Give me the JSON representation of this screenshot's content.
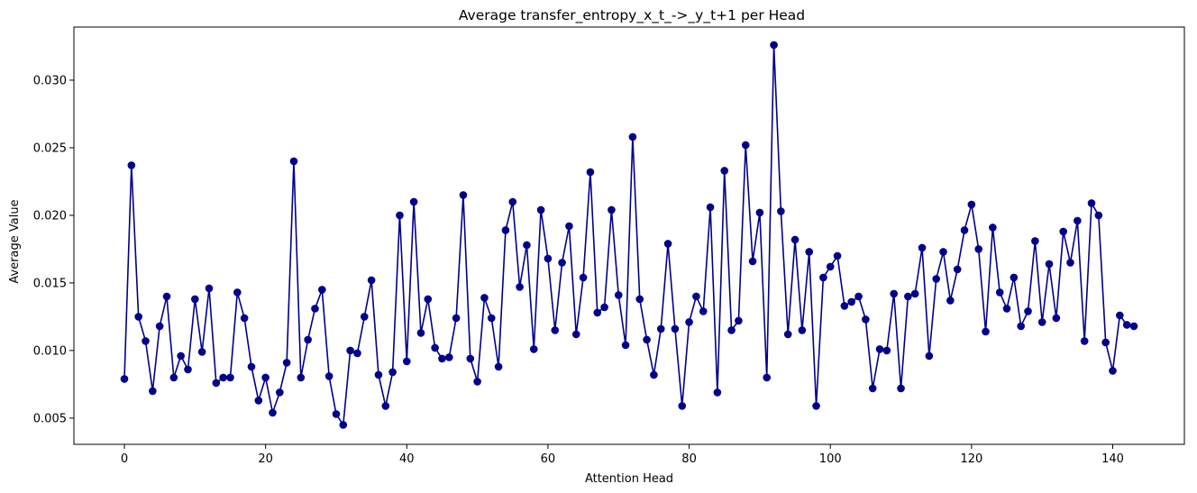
{
  "chart_data": {
    "type": "line",
    "title": "Average transfer_entropy_x_t_->_y_t+1 per Head",
    "xlabel": "Attention Head",
    "ylabel": "Average Value",
    "xlim": [
      -7.15,
      150.15
    ],
    "ylim": [
      0.00306,
      0.03393
    ],
    "xticks": [
      0,
      20,
      40,
      60,
      80,
      100,
      120,
      140
    ],
    "yticks": [
      0.005,
      0.01,
      0.015,
      0.02,
      0.025,
      0.03
    ],
    "ytick_labels": [
      "0.005",
      "0.010",
      "0.015",
      "0.020",
      "0.025",
      "0.030"
    ],
    "grid": false,
    "color": "#00008b",
    "marker": "circle",
    "series": [
      {
        "x": [
          0,
          1,
          2,
          3,
          4,
          5,
          6,
          7,
          8,
          9,
          10,
          11,
          12,
          13,
          14,
          15,
          16,
          17,
          18,
          19,
          20,
          21,
          22,
          23,
          24,
          25,
          26,
          27,
          28,
          29,
          30,
          31,
          32,
          33,
          34,
          35,
          36,
          37,
          38,
          39,
          40,
          41,
          42,
          43,
          44,
          45,
          46,
          47,
          48,
          49,
          50,
          51,
          52,
          53,
          54,
          55,
          56,
          57,
          58,
          59,
          60,
          61,
          62,
          63,
          64,
          65,
          66,
          67,
          68,
          69,
          70,
          71,
          72,
          73,
          74,
          75,
          76,
          77,
          78,
          79,
          80,
          81,
          82,
          83,
          84,
          85,
          86,
          87,
          88,
          89,
          90,
          91,
          92,
          93,
          94,
          95,
          96,
          97,
          98,
          99,
          100,
          101,
          102,
          103,
          104,
          105,
          106,
          107,
          108,
          109,
          110,
          111,
          112,
          113,
          114,
          115,
          116,
          117,
          118,
          119,
          120,
          121,
          122,
          123,
          124,
          125,
          126,
          127,
          128,
          129,
          130,
          131,
          132,
          133,
          134,
          135,
          136,
          137,
          138,
          139,
          140,
          141,
          142,
          143
        ],
        "values": [
          0.0079,
          0.0237,
          0.0125,
          0.0107,
          0.007,
          0.0118,
          0.014,
          0.008,
          0.0096,
          0.0086,
          0.0138,
          0.0099,
          0.0146,
          0.0076,
          0.008,
          0.008,
          0.0143,
          0.0124,
          0.0088,
          0.0063,
          0.008,
          0.0054,
          0.0069,
          0.0091,
          0.024,
          0.008,
          0.0108,
          0.0131,
          0.0145,
          0.0081,
          0.0053,
          0.0045,
          0.01,
          0.0098,
          0.0125,
          0.0152,
          0.0082,
          0.0059,
          0.0084,
          0.02,
          0.0092,
          0.021,
          0.0113,
          0.0138,
          0.0102,
          0.0094,
          0.0095,
          0.0124,
          0.0215,
          0.0094,
          0.0077,
          0.0139,
          0.0124,
          0.0088,
          0.0189,
          0.021,
          0.0147,
          0.0178,
          0.0101,
          0.0204,
          0.0168,
          0.0115,
          0.0165,
          0.0192,
          0.0112,
          0.0154,
          0.0232,
          0.0128,
          0.0132,
          0.0204,
          0.0141,
          0.0104,
          0.0258,
          0.0138,
          0.0108,
          0.0082,
          0.0116,
          0.0179,
          0.0116,
          0.0059,
          0.0121,
          0.014,
          0.0129,
          0.0206,
          0.0069,
          0.0233,
          0.0115,
          0.0122,
          0.0252,
          0.0166,
          0.0202,
          0.008,
          0.0326,
          0.0203,
          0.0112,
          0.0182,
          0.0115,
          0.0173,
          0.0059,
          0.0154,
          0.0162,
          0.017,
          0.0133,
          0.0136,
          0.014,
          0.0123,
          0.0072,
          0.0101,
          0.01,
          0.0142,
          0.0072,
          0.014,
          0.0142,
          0.0176,
          0.0096,
          0.0153,
          0.0173,
          0.0137,
          0.016,
          0.0189,
          0.0208,
          0.0175,
          0.0114,
          0.0191,
          0.0143,
          0.0131,
          0.0154,
          0.0118,
          0.0129,
          0.0181,
          0.0121,
          0.0164,
          0.0124,
          0.0188,
          0.0165,
          0.0196,
          0.0107,
          0.0209,
          0.02,
          0.0106,
          0.0085,
          0.0126,
          0.0119,
          0.0118
        ]
      }
    ]
  }
}
